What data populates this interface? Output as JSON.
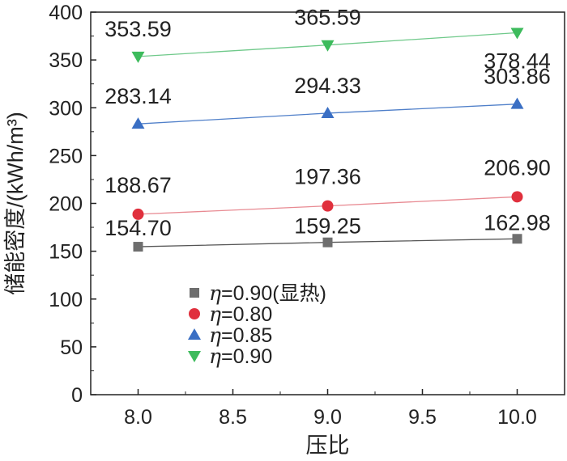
{
  "chart_data": {
    "type": "line",
    "title": "",
    "xlabel": "压比",
    "ylabel": "储能密度/(kWh/m³)",
    "x": [
      8.0,
      9.0,
      10.0
    ],
    "xlim": [
      7.75,
      10.25
    ],
    "ylim": [
      0,
      400
    ],
    "xticks": [
      "8.0",
      "8.5",
      "9.0",
      "9.5",
      "10.0"
    ],
    "yticks": [
      "0",
      "50",
      "100",
      "150",
      "200",
      "250",
      "300",
      "350",
      "400"
    ],
    "grid": false,
    "legend_position": "lower-left",
    "series": [
      {
        "name": "η=0.90(显热)",
        "legend_symbol": "η",
        "legend_text": "=0.90(显热)",
        "marker": "square",
        "marker_color": "#6e6e6e",
        "line_color": "#555555",
        "values": [
          154.7,
          159.25,
          162.98
        ],
        "labels": [
          "154.70",
          "159.25",
          "162.98"
        ]
      },
      {
        "name": "η=0.80",
        "legend_symbol": "η",
        "legend_text": "=0.80",
        "marker": "circle",
        "marker_color": "#e0303d",
        "line_color": "#e88a92",
        "values": [
          188.67,
          197.36,
          206.9
        ],
        "labels": [
          "188.67",
          "197.36",
          "206.90"
        ]
      },
      {
        "name": "η=0.85",
        "legend_symbol": "η",
        "legend_text": "=0.85",
        "marker": "triangle-up",
        "marker_color": "#3a6fc4",
        "line_color": "#4f7fc9",
        "values": [
          283.14,
          294.33,
          303.86
        ],
        "labels": [
          "283.14",
          "294.33",
          "303.86"
        ]
      },
      {
        "name": "η=0.90",
        "legend_symbol": "η",
        "legend_text": "=0.90",
        "marker": "triangle-down",
        "marker_color": "#3dbb5c",
        "line_color": "#6fc98a",
        "values": [
          353.59,
          365.59,
          378.44
        ],
        "labels": [
          "353.59",
          "365.59",
          "378.44"
        ]
      }
    ]
  }
}
